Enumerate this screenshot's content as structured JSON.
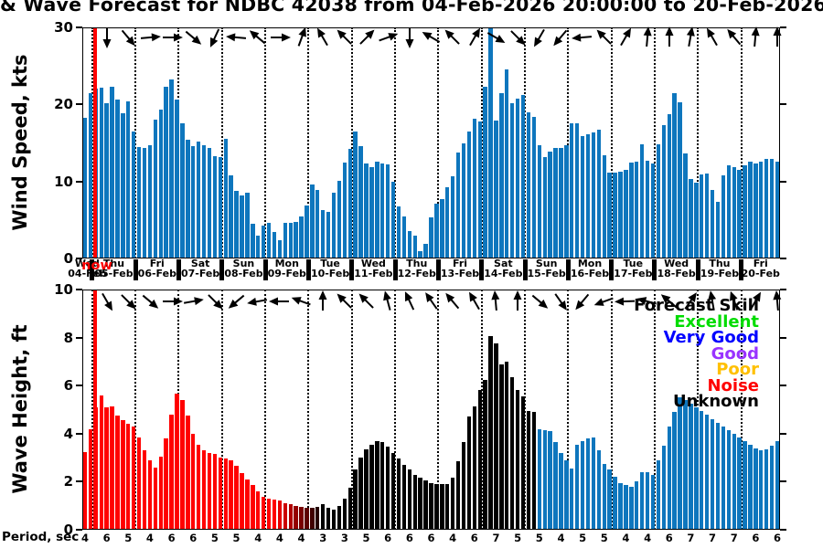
{
  "title": "& Wave Forecast for NDBC 42038 from 04-Feb-2026 20:00:00 to 20-Feb-2026",
  "colors": {
    "bar_blue": "#0E76BD",
    "noise_red": "#FF0000",
    "unknown_black": "#000000",
    "now_marker": "#FF0000",
    "axis": "#000000"
  },
  "x_axis": {
    "now_label": "now",
    "days": [
      {
        "weekday": "Wed",
        "date": "04-Feb"
      },
      {
        "weekday": "Thu",
        "date": "05-Feb"
      },
      {
        "weekday": "Fri",
        "date": "06-Feb"
      },
      {
        "weekday": "Sat",
        "date": "07-Feb"
      },
      {
        "weekday": "Sun",
        "date": "08-Feb"
      },
      {
        "weekday": "Mon",
        "date": "09-Feb"
      },
      {
        "weekday": "Tue",
        "date": "10-Feb"
      },
      {
        "weekday": "Wed",
        "date": "11-Feb"
      },
      {
        "weekday": "Thu",
        "date": "12-Feb"
      },
      {
        "weekday": "Fri",
        "date": "13-Feb"
      },
      {
        "weekday": "Sat",
        "date": "14-Feb"
      },
      {
        "weekday": "Sun",
        "date": "15-Feb"
      },
      {
        "weekday": "Mon",
        "date": "16-Feb"
      },
      {
        "weekday": "Tue",
        "date": "17-Feb"
      },
      {
        "weekday": "Wed",
        "date": "18-Feb"
      },
      {
        "weekday": "Thu",
        "date": "19-Feb"
      },
      {
        "weekday": "Fri",
        "date": "20-Feb"
      }
    ]
  },
  "legend": {
    "title": "Forecast Skill",
    "entries": [
      {
        "label": "Excellent",
        "color": "#00DC00"
      },
      {
        "label": "Very Good",
        "color": "#0000FF"
      },
      {
        "label": "Good",
        "color": "#9933FF"
      },
      {
        "label": "Poor",
        "color": "#FFC000"
      },
      {
        "label": "Noise",
        "color": "#FF0000"
      },
      {
        "label": "Unknown",
        "color": "#000000"
      }
    ]
  },
  "chart_data": [
    {
      "type": "bar",
      "panel": "wind",
      "ylabel": "Wind Speed, kts",
      "ylim": [
        0,
        30
      ],
      "yticks": [
        0,
        10,
        20,
        30
      ],
      "time_step_hours": 3,
      "bar_color": "#0E76BD",
      "values": [
        18.3,
        21.5,
        22.0,
        22.2,
        20.2,
        22.3,
        20.6,
        18.8,
        20.4,
        16.5,
        14.5,
        14.4,
        14.7,
        18.0,
        19.3,
        22.3,
        23.3,
        20.6,
        17.5,
        15.4,
        14.6,
        15.2,
        14.7,
        14.3,
        13.3,
        13.2,
        15.5,
        10.8,
        8.8,
        8.2,
        8.5,
        4.5,
        3.0,
        4.3,
        4.6,
        3.4,
        2.4,
        4.6,
        4.6,
        4.8,
        5.5,
        6.9,
        9.6,
        8.9,
        6.3,
        6.1,
        8.5,
        10.1,
        12.5,
        14.2,
        16.5,
        14.6,
        12.3,
        11.9,
        12.6,
        12.3,
        12.2,
        10.0,
        6.8,
        5.4,
        3.5,
        3.0,
        0.9,
        1.9,
        5.3,
        7.1,
        7.7,
        9.3,
        10.7,
        13.8,
        15.0,
        16.5,
        18.1,
        17.8,
        22.3,
        29.9,
        17.9,
        21.5,
        24.5,
        20.1,
        20.8,
        21.2,
        19.0,
        18.4,
        14.7,
        13.2,
        13.9,
        14.4,
        14.4,
        14.7,
        17.5,
        17.6,
        15.9,
        16.1,
        16.4,
        16.7,
        13.4,
        11.1,
        11.1,
        11.3,
        11.5,
        12.5,
        12.6,
        14.8,
        12.7,
        12.3,
        14.8,
        17.3,
        18.7,
        21.5,
        20.3,
        13.6,
        10.3,
        9.8,
        10.9,
        11.0,
        8.9,
        7.4,
        10.8,
        12.1,
        11.8,
        11.5,
        12.1,
        12.6,
        12.3,
        12.6,
        12.9,
        12.9,
        12.6
      ],
      "arrow_angle_convention": "degrees clockwise, 0 = pointing right, one arrow per 12h",
      "direction_arrows_deg": [
        90,
        50,
        -5,
        0,
        40,
        115,
        185,
        -140,
        0,
        -70,
        -120,
        -135,
        -45,
        -20,
        90,
        -150,
        -135,
        -60,
        30,
        45,
        120,
        130,
        175,
        -135,
        -60,
        -85,
        -90,
        -80,
        -120,
        -130,
        -85,
        -90
      ]
    },
    {
      "type": "bar",
      "panel": "wave",
      "ylabel": "Wave Height, ft",
      "ylim": [
        0,
        10
      ],
      "yticks": [
        0,
        2,
        4,
        6,
        8,
        10
      ],
      "time_step_hours": 3,
      "values": [
        3.25,
        4.2,
        5.1,
        5.6,
        5.1,
        5.15,
        4.75,
        4.55,
        4.4,
        4.3,
        3.85,
        3.3,
        2.9,
        2.6,
        3.05,
        3.8,
        4.8,
        5.65,
        5.4,
        4.75,
        4.0,
        3.55,
        3.3,
        3.2,
        3.15,
        3.0,
        2.95,
        2.9,
        2.65,
        2.35,
        2.1,
        1.85,
        1.6,
        1.35,
        1.3,
        1.25,
        1.2,
        1.1,
        1.05,
        1.0,
        0.95,
        0.9,
        0.9,
        0.95,
        1.05,
        0.9,
        0.85,
        1.0,
        1.3,
        1.75,
        2.5,
        3.0,
        3.35,
        3.55,
        3.7,
        3.65,
        3.45,
        3.2,
        2.95,
        2.7,
        2.5,
        2.3,
        2.15,
        2.05,
        1.95,
        1.9,
        1.9,
        1.9,
        2.15,
        2.85,
        3.65,
        4.7,
        5.15,
        5.8,
        6.25,
        8.05,
        7.75,
        6.9,
        7.0,
        6.35,
        5.8,
        5.55,
        4.95,
        4.9,
        4.2,
        4.15,
        4.1,
        3.65,
        3.2,
        2.9,
        2.55,
        3.55,
        3.7,
        3.8,
        3.85,
        3.3,
        2.75,
        2.5,
        2.2,
        1.95,
        1.85,
        1.8,
        2.0,
        2.4,
        2.4,
        2.3,
        2.9,
        3.5,
        4.3,
        4.9,
        5.5,
        5.4,
        5.25,
        5.1,
        4.95,
        4.8,
        4.6,
        4.45,
        4.3,
        4.15,
        4.0,
        3.85,
        3.7,
        3.55,
        3.4,
        3.3,
        3.35,
        3.5,
        3.7
      ],
      "skill_segments": [
        {
          "skill": "Noise",
          "color": "#FF0000",
          "from": 0,
          "to": 35
        },
        {
          "skill": "Noise fading to Unknown",
          "from": 36,
          "to": 43,
          "colors": [
            "#E60000",
            "#CC0000",
            "#B00000",
            "#940000",
            "#780000",
            "#5C0000",
            "#400000",
            "#240000"
          ]
        },
        {
          "skill": "Unknown",
          "color": "#000000",
          "from": 44,
          "to": 83
        },
        {
          "skill": "Very Good",
          "color": "#0E76BD",
          "from": 84,
          "to": 128
        }
      ],
      "direction_arrows_deg": [
        60,
        45,
        40,
        0,
        -10,
        45,
        140,
        170,
        180,
        -160,
        -90,
        -135,
        -135,
        -105,
        -115,
        -125,
        -130,
        -120,
        -95,
        -90,
        40,
        55,
        130,
        160,
        178,
        -165,
        -140,
        -55,
        -100,
        -110,
        -60,
        -95
      ],
      "period_axis_label": "Period, sec",
      "period_sec": [
        4,
        6,
        5,
        4,
        6,
        6,
        5,
        5,
        4,
        4,
        4,
        3,
        3,
        5,
        6,
        6,
        6,
        4,
        6,
        7,
        5,
        5,
        4,
        5,
        5,
        4,
        4,
        6,
        7,
        7,
        7,
        6,
        6
      ]
    }
  ]
}
